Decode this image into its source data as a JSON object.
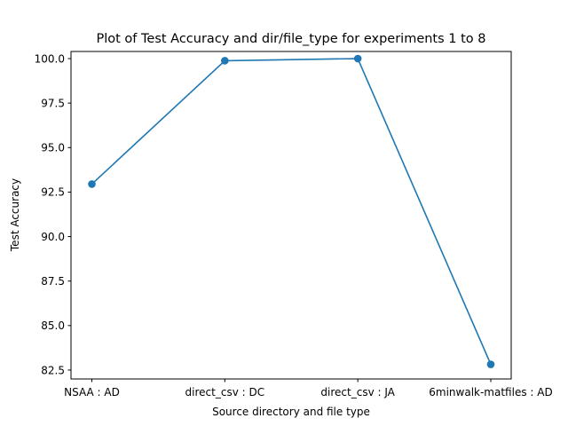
{
  "chart_data": {
    "type": "line",
    "title": "Plot of Test Accuracy and dir/file_type for experiments 1 to 8",
    "xlabel": "Source directory and file type",
    "ylabel": "Test Accuracy",
    "categories": [
      "NSAA : AD",
      "direct_csv : DC",
      "direct_csv : JA",
      "6minwalk-matfiles : AD"
    ],
    "series": [
      {
        "values": [
          92.95,
          99.88,
          100.0,
          82.82
        ]
      }
    ],
    "yticks": [
      "82.5",
      "85.0",
      "87.5",
      "90.0",
      "92.5",
      "95.0",
      "97.5",
      "100.0"
    ],
    "ylim": [
      82.0,
      100.4
    ],
    "grid": false,
    "legend": "none",
    "line_color": "#1f77b4"
  }
}
